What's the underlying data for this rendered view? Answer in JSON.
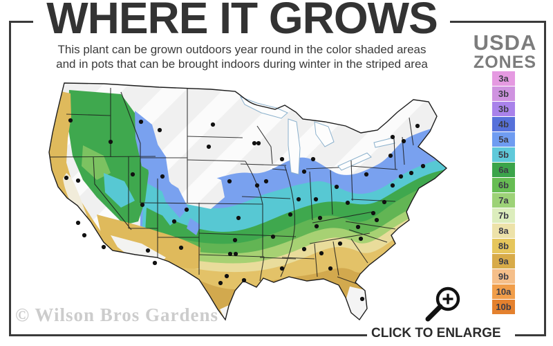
{
  "header": {
    "title": "WHERE IT GROWS",
    "subtitle_line1": "This plant can be grown outdoors year round in the color shaded areas",
    "subtitle_line2": "and in pots that can be brought indoors during winter in the striped area"
  },
  "legend": {
    "title_line1": "USDA",
    "title_line2": "ZONES",
    "zones": [
      {
        "label": "3a",
        "color": "#e59ae1"
      },
      {
        "label": "3b",
        "color": "#cf93e0"
      },
      {
        "label": "3b",
        "color": "#a982ea"
      },
      {
        "label": "4b",
        "color": "#5671da"
      },
      {
        "label": "5a",
        "color": "#6f9cf1"
      },
      {
        "label": "5b",
        "color": "#5fc9da"
      },
      {
        "label": "6a",
        "color": "#3ba44a"
      },
      {
        "label": "6b",
        "color": "#67bd53"
      },
      {
        "label": "7a",
        "color": "#9dd277"
      },
      {
        "label": "7b",
        "color": "#dcedbd"
      },
      {
        "label": "8a",
        "color": "#ede2a9"
      },
      {
        "label": "8b",
        "color": "#e6c65c"
      },
      {
        "label": "9a",
        "color": "#d8ab49"
      },
      {
        "label": "9b",
        "color": "#f5bf8a"
      },
      {
        "label": "10a",
        "color": "#f19e4a"
      },
      {
        "label": "10b",
        "color": "#e4812e"
      }
    ]
  },
  "map": {
    "description": "USDA hardiness zone map of the continental United States with color shaded growing zones, a striped area in the north, state borders and city dots"
  },
  "footer": {
    "watermark": "© Wilson Bros Gardens",
    "enlarge_label": "CLICK TO ENLARGE"
  }
}
